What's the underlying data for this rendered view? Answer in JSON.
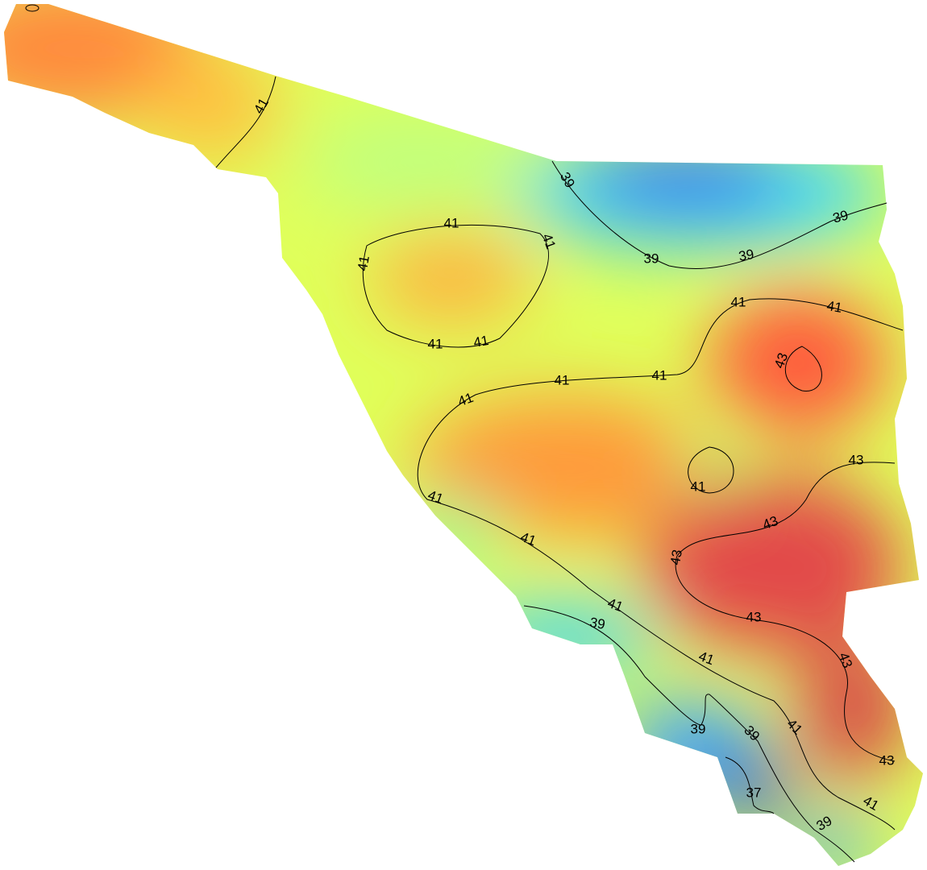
{
  "map": {
    "contour_labels": [
      "41",
      "39",
      "41",
      "41",
      "41",
      "39",
      "39",
      "39",
      "41",
      "41",
      "41",
      "41",
      "43",
      "41",
      "41",
      "41",
      "43",
      "41",
      "41",
      "43",
      "41",
      "43",
      "41",
      "39",
      "43",
      "41",
      "43",
      "39",
      "39",
      "41",
      "43",
      "37",
      "41",
      "39"
    ]
  }
}
